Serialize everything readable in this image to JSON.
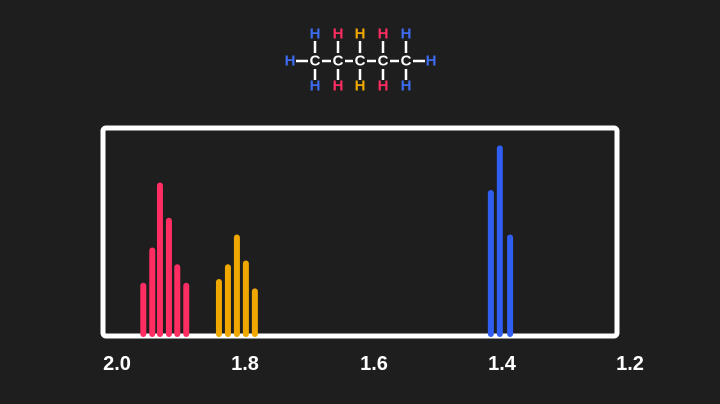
{
  "molecule": {
    "carbon_label": "C",
    "hydrogen_label": "H",
    "hydrogen_colors": [
      "#3d6cf0",
      "#ff2d62",
      "#f0a800",
      "#ff2d62",
      "#3d6cf0"
    ],
    "bond_color": "#ffffff"
  },
  "chart_data": {
    "type": "bar",
    "title": "",
    "xlabel": "",
    "ylabel": "",
    "xlim": [
      2.0,
      1.2
    ],
    "x_reversed": true,
    "ylim": [
      0,
      111
    ],
    "grid": false,
    "xticks": [
      "2.0",
      "1.8",
      "1.6",
      "1.4",
      "1.2"
    ],
    "series": [
      {
        "color": "#ff2d62",
        "x": [
          1.959,
          1.945,
          1.933,
          1.919,
          1.906,
          1.892
        ],
        "values": [
          26,
          45,
          80,
          61,
          36,
          26
        ]
      },
      {
        "color": "#f0a800",
        "x": [
          1.841,
          1.827,
          1.813,
          1.799,
          1.785
        ],
        "values": [
          28,
          36,
          52,
          38,
          23
        ]
      },
      {
        "color": "#2f5ef0",
        "x": [
          1.417,
          1.403,
          1.387
        ],
        "values": [
          76,
          100,
          52
        ]
      }
    ]
  }
}
